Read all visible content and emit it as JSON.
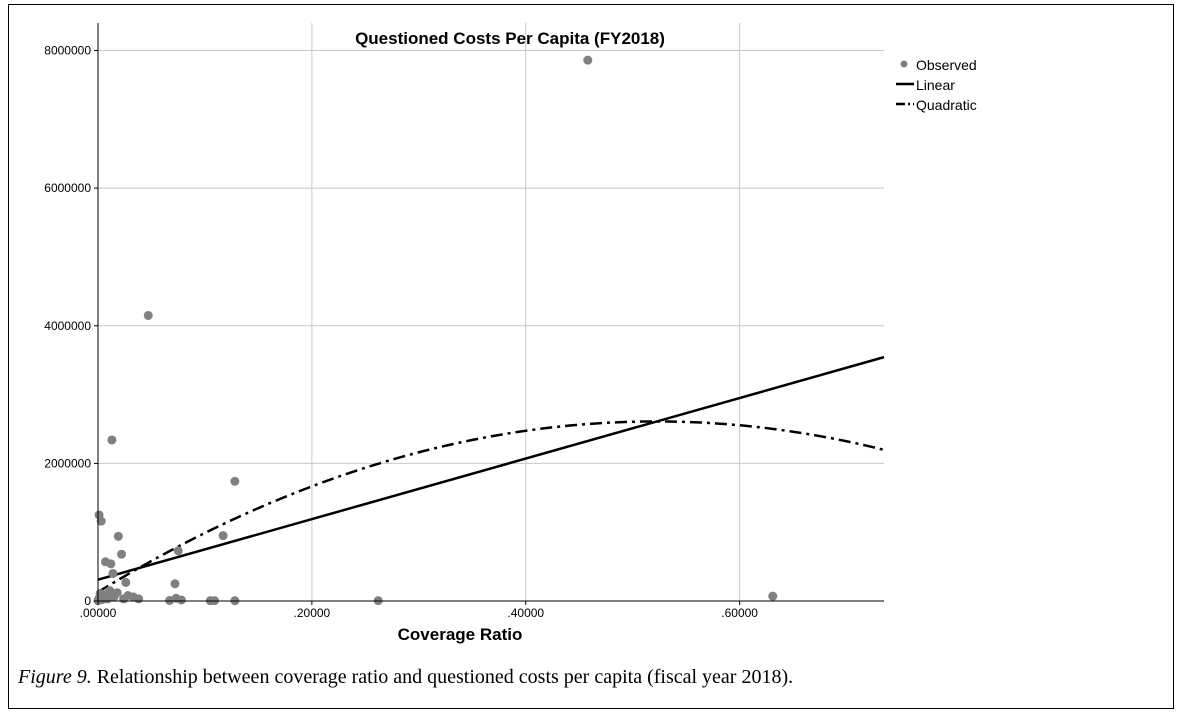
{
  "caption": {
    "label": "Figure 9.",
    "text": " Relationship between coverage ratio and questioned costs per capita (fiscal year 2018)."
  },
  "chart_data": {
    "type": "scatter",
    "title": "Questioned Costs Per Capita (FY2018)",
    "xlabel": "Coverage Ratio",
    "ylabel": "",
    "xlim": [
      0,
      0.735
    ],
    "ylim": [
      0,
      8400000
    ],
    "x_ticks": [
      0,
      0.2,
      0.4,
      0.6
    ],
    "x_tick_labels": [
      ".00000",
      ".20000",
      ".40000",
      ".60000"
    ],
    "y_ticks": [
      0,
      2000000,
      4000000,
      6000000,
      8000000
    ],
    "y_tick_labels": [
      "0",
      "2000000",
      "4000000",
      "6000000",
      "8000000"
    ],
    "grid": true,
    "legend_position": "top-right",
    "colors": {
      "observed": "#808080",
      "fit": "#000000",
      "grid": "#c8c8c8"
    },
    "series": [
      {
        "name": "Observed",
        "kind": "scatter",
        "points": [
          {
            "x": 0.001,
            "y": 1250000
          },
          {
            "x": 0.003,
            "y": 1160000
          },
          {
            "x": 0.007,
            "y": 570000
          },
          {
            "x": 0.012,
            "y": 540000
          },
          {
            "x": 0.014,
            "y": 400000
          },
          {
            "x": 0.019,
            "y": 940000
          },
          {
            "x": 0.022,
            "y": 680000
          },
          {
            "x": 0.026,
            "y": 270000
          },
          {
            "x": 0.013,
            "y": 2340000
          },
          {
            "x": 0.047,
            "y": 4150000
          },
          {
            "x": 0.075,
            "y": 730000
          },
          {
            "x": 0.072,
            "y": 250000
          },
          {
            "x": 0.117,
            "y": 950000
          },
          {
            "x": 0.128,
            "y": 1740000
          },
          {
            "x": 0.458,
            "y": 7860000
          },
          {
            "x": 0.631,
            "y": 70000
          },
          {
            "x": 0.262,
            "y": 5000
          },
          {
            "x": 0.128,
            "y": 5000
          },
          {
            "x": 0.109,
            "y": 5000
          },
          {
            "x": 0.105,
            "y": 5000
          },
          {
            "x": 0.078,
            "y": 15000
          },
          {
            "x": 0.073,
            "y": 40000
          },
          {
            "x": 0.067,
            "y": 8000
          },
          {
            "x": 0.038,
            "y": 30000
          },
          {
            "x": 0.033,
            "y": 60000
          },
          {
            "x": 0.028,
            "y": 80000
          },
          {
            "x": 0.024,
            "y": 30000
          },
          {
            "x": 0.018,
            "y": 120000
          },
          {
            "x": 0.015,
            "y": 60000
          },
          {
            "x": 0.011,
            "y": 150000
          },
          {
            "x": 0.009,
            "y": 30000
          },
          {
            "x": 0.006,
            "y": 90000
          },
          {
            "x": 0.004,
            "y": 20000
          },
          {
            "x": 0.002,
            "y": 110000
          },
          {
            "x": 0.001,
            "y": 40000
          },
          {
            "x": 0.0,
            "y": 5000
          }
        ]
      },
      {
        "name": "Linear",
        "kind": "line",
        "dash": "solid",
        "intercept": 310000,
        "slope": 4400000
      },
      {
        "name": "Quadratic",
        "kind": "curve",
        "dash": "dash-dot",
        "a": 130000,
        "b": 9500000,
        "c": -9100000
      }
    ]
  }
}
